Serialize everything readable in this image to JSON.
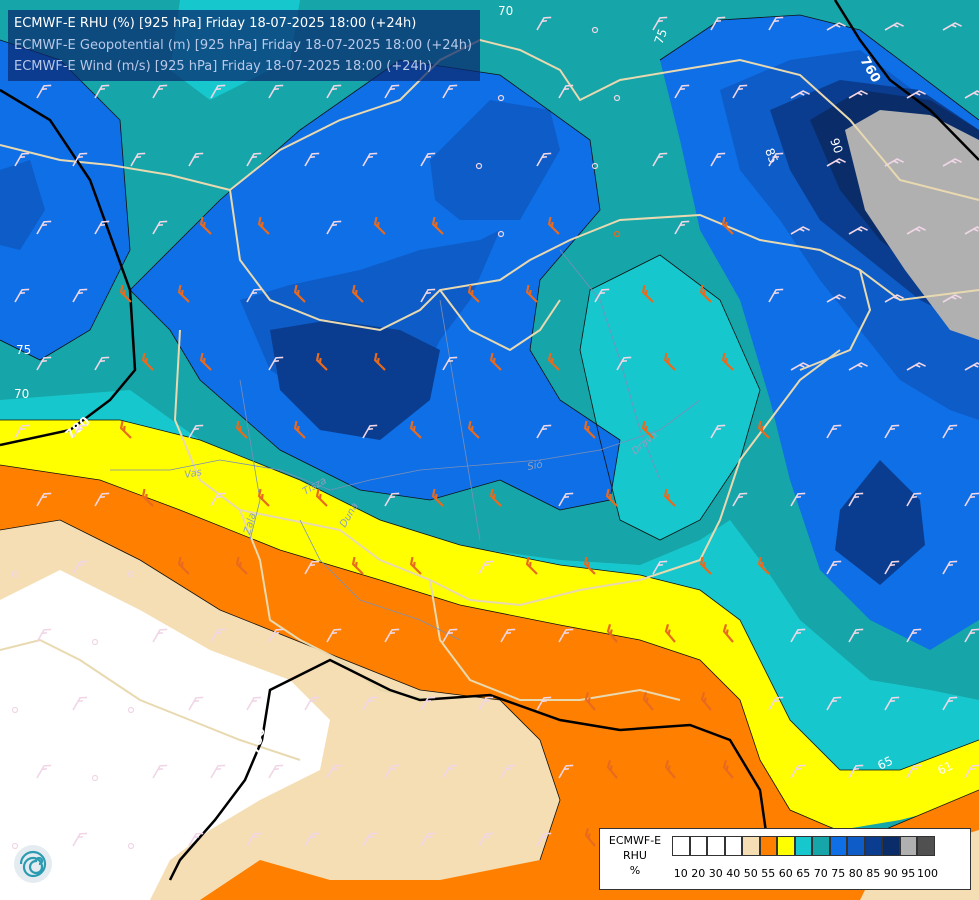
{
  "titles": {
    "rhu": "ECMWF-E RHU (%) [925 hPa] Friday 18-07-2025 18:00 (+24h)",
    "geopotential": "ECMWF-E Geopotential (m) [925 hPa] Friday 18-07-2025 18:00 (+24h)",
    "wind": "ECMWF-E Wind (m/s) [925 hPa] Friday 18-07-2025 18:00 (+24h)"
  },
  "legend": {
    "model": "ECMWF-E",
    "variable": "RHU",
    "unit": "%",
    "scale": [
      {
        "label": "10",
        "color": "#ffffff"
      },
      {
        "label": "20",
        "color": "#ffffff"
      },
      {
        "label": "30",
        "color": "#ffffff"
      },
      {
        "label": "40",
        "color": "#ffffff"
      },
      {
        "label": "50",
        "color": "#f5deb3"
      },
      {
        "label": "55",
        "color": "#ff8000"
      },
      {
        "label": "60",
        "color": "#ffff00"
      },
      {
        "label": "65",
        "color": "#16c8cd"
      },
      {
        "label": "70",
        "color": "#16a5a8"
      },
      {
        "label": "75",
        "color": "#0f6fe6"
      },
      {
        "label": "80",
        "color": "#0d5cc8"
      },
      {
        "label": "85",
        "color": "#0a3d8f"
      },
      {
        "label": "90",
        "color": "#0a2d6a"
      },
      {
        "label": "95",
        "color": "#b0b0b0"
      },
      {
        "label": "100",
        "color": "#505050"
      }
    ]
  },
  "contour_labels": {
    "rhu": [
      "70",
      "75",
      "75",
      "70",
      "85",
      "90",
      "65",
      "61"
    ],
    "geopotential": [
      "780",
      "760",
      "780"
    ]
  },
  "river_labels": [
    "Vas",
    "Zala",
    "Tisza",
    "Duna",
    "Sió",
    "Drava"
  ],
  "colors": {
    "title_rhu": "#ffffff",
    "title_other": "#b8c8e8",
    "wind_barb_light": "#f0d6e6",
    "wind_barb_strong": "#e86a1e",
    "border": "#e8d9b0",
    "geopotential_line": "#000000"
  },
  "icons": {
    "logo": "ecmwf-spiral-logo-icon",
    "wind": "wind-barb-icon"
  }
}
